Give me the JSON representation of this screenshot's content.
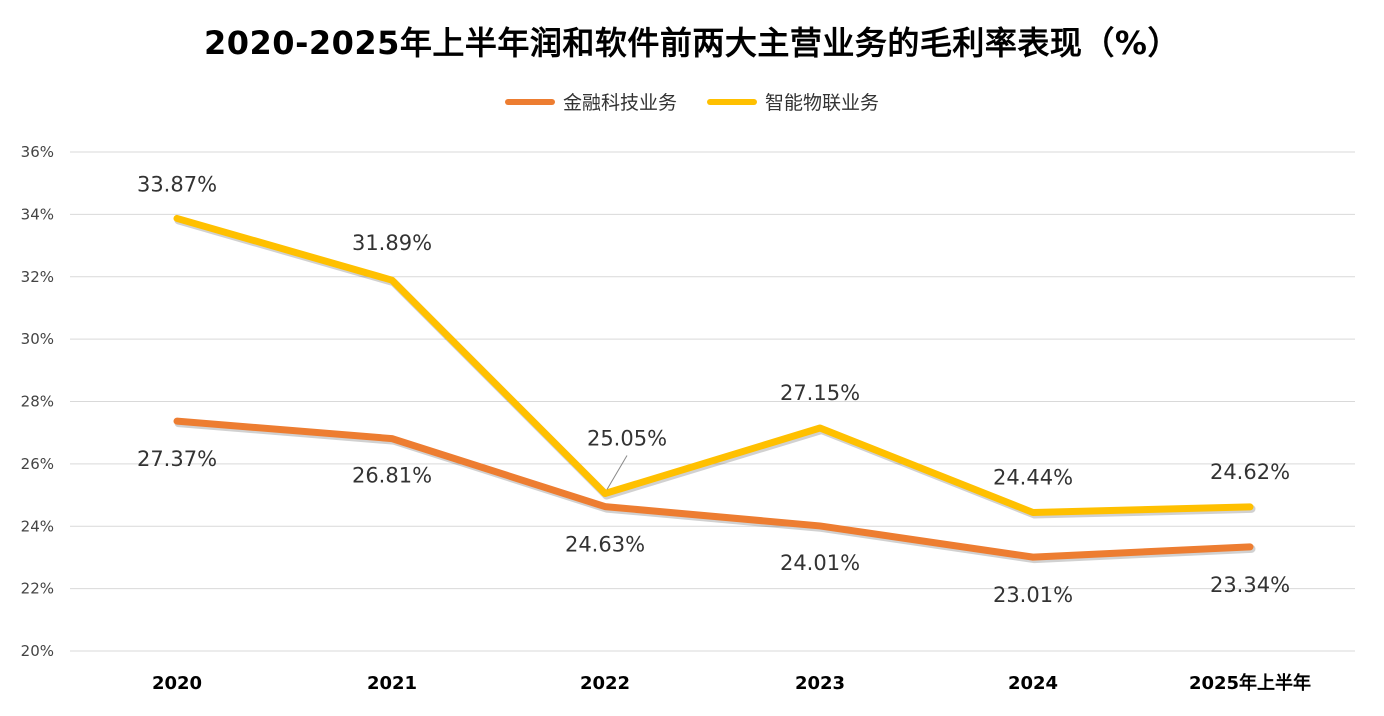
{
  "chart_data": {
    "type": "line",
    "title": "2020-2025年上半年润和软件前两大主营业务的毛利率表现（%）",
    "categories": [
      "2020",
      "2021",
      "2022",
      "2023",
      "2024",
      "2025年上半年"
    ],
    "series": [
      {
        "name": "金融科技业务",
        "color": "#ED7D31",
        "values": [
          27.37,
          26.81,
          24.63,
          24.01,
          23.01,
          23.34
        ],
        "labels": [
          "27.37%",
          "26.81%",
          "24.63%",
          "24.01%",
          "23.01%",
          "23.34%"
        ]
      },
      {
        "name": "智能物联业务",
        "color": "#FFC000",
        "values": [
          33.87,
          31.89,
          25.05,
          27.15,
          24.44,
          24.62
        ],
        "labels": [
          "33.87%",
          "31.89%",
          "25.05%",
          "27.15%",
          "24.44%",
          "24.62%"
        ]
      }
    ],
    "ylim": [
      20,
      36
    ],
    "yticks": [
      "20%",
      "22%",
      "24%",
      "26%",
      "28%",
      "30%",
      "32%",
      "34%",
      "36%"
    ],
    "grid": true,
    "legend": "top-center"
  }
}
